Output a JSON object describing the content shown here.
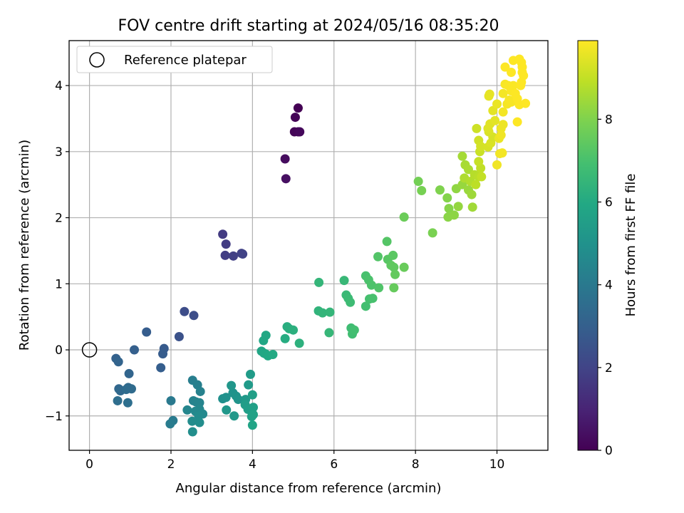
{
  "chart_data": {
    "type": "scatter",
    "title": "FOV centre drift starting at 2024/05/16 08:35:20",
    "xlabel": "Angular distance from reference (arcmin)",
    "ylabel": "Rotation from reference (arcmin)",
    "xlim": [
      -0.5,
      11.25
    ],
    "ylim": [
      -1.52,
      4.68
    ],
    "x_ticks": [
      "0",
      "2",
      "4",
      "6",
      "8",
      "10"
    ],
    "y_ticks": [
      "−1",
      "0",
      "1",
      "2",
      "3",
      "4"
    ],
    "grid": true,
    "legend": {
      "placement": "top-left",
      "entries": [
        "Reference platepar"
      ]
    },
    "reference_point": {
      "x": 0,
      "y": 0
    },
    "colorbar": {
      "label": "Hours from first FF file",
      "range": [
        0,
        9.9
      ],
      "ticks": [
        "0",
        "2",
        "4",
        "6",
        "8"
      ],
      "colormap": "viridis"
    },
    "points": [
      [
        5.12,
        3.66,
        0.0
      ],
      [
        5.05,
        3.52,
        0.05
      ],
      [
        5.03,
        3.3,
        0.1
      ],
      [
        5.12,
        3.3,
        0.15
      ],
      [
        5.16,
        3.3,
        0.2
      ],
      [
        4.8,
        2.89,
        0.3
      ],
      [
        4.82,
        2.59,
        0.4
      ],
      [
        3.27,
        1.75,
        1.7
      ],
      [
        3.35,
        1.6,
        1.75
      ],
      [
        3.33,
        1.43,
        1.8
      ],
      [
        3.53,
        1.42,
        1.85
      ],
      [
        3.73,
        1.46,
        1.9
      ],
      [
        3.76,
        1.45,
        1.95
      ],
      [
        2.33,
        0.58,
        2.3
      ],
      [
        2.56,
        0.52,
        2.35
      ],
      [
        2.2,
        0.2,
        2.5
      ],
      [
        1.4,
        0.27,
        2.9
      ],
      [
        1.83,
        0.02,
        2.8
      ],
      [
        1.8,
        -0.06,
        2.85
      ],
      [
        1.75,
        -0.27,
        2.95
      ],
      [
        1.1,
        0.0,
        3.0
      ],
      [
        0.65,
        -0.13,
        3.1
      ],
      [
        0.71,
        -0.18,
        3.15
      ],
      [
        0.97,
        -0.36,
        3.2
      ],
      [
        0.72,
        -0.59,
        3.3
      ],
      [
        0.76,
        -0.62,
        3.35
      ],
      [
        0.95,
        -0.57,
        3.4
      ],
      [
        1.03,
        -0.59,
        3.45
      ],
      [
        0.9,
        -0.6,
        3.5
      ],
      [
        0.69,
        -0.77,
        3.55
      ],
      [
        0.94,
        -0.8,
        3.6
      ],
      [
        2.0,
        -0.77,
        4.0
      ],
      [
        2.05,
        -1.07,
        4.05
      ],
      [
        1.98,
        -1.12,
        4.1
      ],
      [
        2.53,
        -0.46,
        4.2
      ],
      [
        2.65,
        -0.53,
        4.25
      ],
      [
        2.72,
        -0.63,
        4.3
      ],
      [
        2.55,
        -0.77,
        4.35
      ],
      [
        2.62,
        -0.79,
        4.4
      ],
      [
        2.7,
        -0.8,
        4.45
      ],
      [
        2.4,
        -0.91,
        4.5
      ],
      [
        2.7,
        -0.9,
        4.55
      ],
      [
        2.6,
        -0.93,
        4.6
      ],
      [
        2.78,
        -0.97,
        4.65
      ],
      [
        2.68,
        -1.0,
        4.7
      ],
      [
        2.52,
        -1.08,
        4.75
      ],
      [
        2.7,
        -1.1,
        4.8
      ],
      [
        2.53,
        -1.24,
        4.85
      ],
      [
        3.27,
        -0.74,
        4.9
      ],
      [
        3.35,
        -0.72,
        4.95
      ],
      [
        3.52,
        -0.65,
        5.0
      ],
      [
        3.6,
        -0.7,
        5.05
      ],
      [
        3.65,
        -0.75,
        5.1
      ],
      [
        3.48,
        -0.54,
        5.15
      ],
      [
        3.36,
        -0.91,
        5.2
      ],
      [
        3.55,
        -1.0,
        5.25
      ],
      [
        3.83,
        -0.75,
        5.3
      ],
      [
        3.9,
        -0.53,
        5.35
      ],
      [
        3.95,
        -0.37,
        5.4
      ],
      [
        3.82,
        -0.83,
        5.45
      ],
      [
        3.89,
        -0.9,
        5.5
      ],
      [
        4.0,
        -0.68,
        5.55
      ],
      [
        4.02,
        -0.87,
        5.6
      ],
      [
        3.98,
        -1.01,
        5.65
      ],
      [
        4.02,
        -0.98,
        5.7
      ],
      [
        4.0,
        -1.14,
        5.75
      ],
      [
        4.22,
        -0.02,
        5.8
      ],
      [
        4.28,
        -0.05,
        5.85
      ],
      [
        4.32,
        -0.06,
        5.9
      ],
      [
        4.38,
        -0.09,
        5.95
      ],
      [
        4.5,
        -0.07,
        6.0
      ],
      [
        4.27,
        0.14,
        5.85
      ],
      [
        4.33,
        0.22,
        5.9
      ],
      [
        4.8,
        0.17,
        6.1
      ],
      [
        4.85,
        0.35,
        6.15
      ],
      [
        4.9,
        0.32,
        6.2
      ],
      [
        5.0,
        0.3,
        6.25
      ],
      [
        5.15,
        0.1,
        6.3
      ],
      [
        5.62,
        0.59,
        6.4
      ],
      [
        5.72,
        0.56,
        6.45
      ],
      [
        5.9,
        0.57,
        6.5
      ],
      [
        5.88,
        0.26,
        6.55
      ],
      [
        5.63,
        1.02,
        6.5
      ],
      [
        6.25,
        1.05,
        6.6
      ],
      [
        6.3,
        0.83,
        6.65
      ],
      [
        6.35,
        0.78,
        6.7
      ],
      [
        6.4,
        0.72,
        6.75
      ],
      [
        6.42,
        0.33,
        6.8
      ],
      [
        6.45,
        0.24,
        6.85
      ],
      [
        6.5,
        0.3,
        6.9
      ],
      [
        6.78,
        0.66,
        6.9
      ],
      [
        6.87,
        0.77,
        6.95
      ],
      [
        6.95,
        0.78,
        7.0
      ],
      [
        6.78,
        1.12,
        7.0
      ],
      [
        6.85,
        1.06,
        7.05
      ],
      [
        6.92,
        0.98,
        7.1
      ],
      [
        7.1,
        0.94,
        7.15
      ],
      [
        7.08,
        1.41,
        7.2
      ],
      [
        7.3,
        1.64,
        7.25
      ],
      [
        7.32,
        1.37,
        7.3
      ],
      [
        7.45,
        1.43,
        7.35
      ],
      [
        7.4,
        1.28,
        7.4
      ],
      [
        7.47,
        1.25,
        7.45
      ],
      [
        7.5,
        1.14,
        7.5
      ],
      [
        7.47,
        0.94,
        7.55
      ],
      [
        7.72,
        1.25,
        7.6
      ],
      [
        7.72,
        2.01,
        7.65
      ],
      [
        8.07,
        2.55,
        7.8
      ],
      [
        8.15,
        2.41,
        7.85
      ],
      [
        8.42,
        1.77,
        7.9
      ],
      [
        8.6,
        2.42,
        8.0
      ],
      [
        8.78,
        2.3,
        8.05
      ],
      [
        8.82,
        2.14,
        8.1
      ],
      [
        8.8,
        2.01,
        8.15
      ],
      [
        8.95,
        2.04,
        8.2
      ],
      [
        9.0,
        2.44,
        8.25
      ],
      [
        9.05,
        2.17,
        8.3
      ],
      [
        9.15,
        2.5,
        8.35
      ],
      [
        9.3,
        2.42,
        8.4
      ],
      [
        9.38,
        2.35,
        8.45
      ],
      [
        9.4,
        2.16,
        8.5
      ],
      [
        9.15,
        2.93,
        8.55
      ],
      [
        9.22,
        2.8,
        8.6
      ],
      [
        9.3,
        2.73,
        8.65
      ],
      [
        9.2,
        2.6,
        8.7
      ],
      [
        9.35,
        2.55,
        8.75
      ],
      [
        9.45,
        2.65,
        8.8
      ],
      [
        9.55,
        2.62,
        8.85
      ],
      [
        9.48,
        2.5,
        8.9
      ],
      [
        9.6,
        2.75,
        8.95
      ],
      [
        9.62,
        2.62,
        9.0
      ],
      [
        9.55,
        2.85,
        9.05
      ],
      [
        9.58,
        3.0,
        9.1
      ],
      [
        9.5,
        3.35,
        9.15
      ],
      [
        9.55,
        3.17,
        9.2
      ],
      [
        9.6,
        3.08,
        9.25
      ],
      [
        9.78,
        3.07,
        9.3
      ],
      [
        9.85,
        3.13,
        9.35
      ],
      [
        9.9,
        3.22,
        9.3
      ],
      [
        9.8,
        3.3,
        9.35
      ],
      [
        9.78,
        3.35,
        9.4
      ],
      [
        9.83,
        3.42,
        9.45
      ],
      [
        9.95,
        3.47,
        9.5
      ],
      [
        9.9,
        3.62,
        9.5
      ],
      [
        9.8,
        3.84,
        9.55
      ],
      [
        9.82,
        3.87,
        9.55
      ],
      [
        10.0,
        3.72,
        9.6
      ],
      [
        10.05,
        3.2,
        9.6
      ],
      [
        10.1,
        3.35,
        9.65
      ],
      [
        10.15,
        3.41,
        9.65
      ],
      [
        10.1,
        3.25,
        9.7
      ],
      [
        10.0,
        2.8,
        9.7
      ],
      [
        10.07,
        2.97,
        9.72
      ],
      [
        10.13,
        2.98,
        9.74
      ],
      [
        10.15,
        3.6,
        9.75
      ],
      [
        10.15,
        3.88,
        9.76
      ],
      [
        10.25,
        3.72,
        9.78
      ],
      [
        10.3,
        3.78,
        9.8
      ],
      [
        10.35,
        3.75,
        9.8
      ],
      [
        10.2,
        4.02,
        9.82
      ],
      [
        10.28,
        4.0,
        9.84
      ],
      [
        10.4,
        4.0,
        9.85
      ],
      [
        10.35,
        3.92,
        9.86
      ],
      [
        10.5,
        3.8,
        9.88
      ],
      [
        10.55,
        3.71,
        9.88
      ],
      [
        10.5,
        3.45,
        9.9
      ],
      [
        10.45,
        3.88,
        9.88
      ],
      [
        10.2,
        4.28,
        9.9
      ],
      [
        10.35,
        4.2,
        9.9
      ],
      [
        10.4,
        4.38,
        9.9
      ],
      [
        10.55,
        4.4,
        9.9
      ],
      [
        10.6,
        4.35,
        9.9
      ],
      [
        10.62,
        4.2,
        9.9
      ],
      [
        10.6,
        4.05,
        9.9
      ],
      [
        10.7,
        3.73,
        9.9
      ],
      [
        10.58,
        4.0,
        9.9
      ],
      [
        10.62,
        4.28,
        9.9
      ],
      [
        10.65,
        4.15,
        9.9
      ]
    ]
  }
}
